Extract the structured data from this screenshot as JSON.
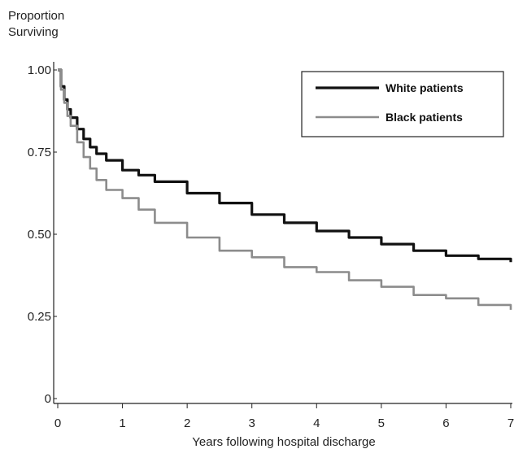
{
  "chart_data": {
    "type": "line",
    "ylabel_lines": [
      "Proportion",
      "Surviving"
    ],
    "xlabel": "Years following hospital discharge",
    "xlim": [
      0,
      7
    ],
    "ylim": [
      0,
      1
    ],
    "x_ticks": [
      "0",
      "1",
      "2",
      "3",
      "4",
      "5",
      "6",
      "7"
    ],
    "y_ticks": [
      {
        "value": 1.0,
        "label": "1.00"
      },
      {
        "value": 0.75,
        "label": "0.75"
      },
      {
        "value": 0.5,
        "label": "0.50"
      },
      {
        "value": 0.25,
        "label": "0.25"
      },
      {
        "value": 0.0,
        "label": "0"
      }
    ],
    "legend_position": "top-right",
    "grid": false,
    "series": [
      {
        "name": "White patients",
        "color": "#111111",
        "x": [
          0,
          0.05,
          0.1,
          0.15,
          0.2,
          0.3,
          0.4,
          0.5,
          0.6,
          0.75,
          1.0,
          1.25,
          1.5,
          2.0,
          2.5,
          3.0,
          3.5,
          4.0,
          4.5,
          5.0,
          5.5,
          6.0,
          6.5,
          7.0
        ],
        "y": [
          1.0,
          0.95,
          0.91,
          0.88,
          0.855,
          0.82,
          0.79,
          0.765,
          0.745,
          0.725,
          0.695,
          0.68,
          0.66,
          0.625,
          0.595,
          0.56,
          0.535,
          0.51,
          0.49,
          0.47,
          0.45,
          0.435,
          0.425,
          0.415
        ]
      },
      {
        "name": "Black patients",
        "color": "#8c8c8c",
        "x": [
          0,
          0.05,
          0.1,
          0.15,
          0.2,
          0.3,
          0.4,
          0.5,
          0.6,
          0.75,
          1.0,
          1.25,
          1.5,
          2.0,
          2.5,
          3.0,
          3.5,
          4.0,
          4.5,
          5.0,
          5.5,
          6.0,
          6.5,
          7.0
        ],
        "y": [
          1.0,
          0.94,
          0.9,
          0.86,
          0.83,
          0.78,
          0.735,
          0.7,
          0.665,
          0.635,
          0.61,
          0.575,
          0.535,
          0.49,
          0.45,
          0.43,
          0.4,
          0.385,
          0.36,
          0.34,
          0.315,
          0.305,
          0.285,
          0.27
        ]
      }
    ]
  }
}
